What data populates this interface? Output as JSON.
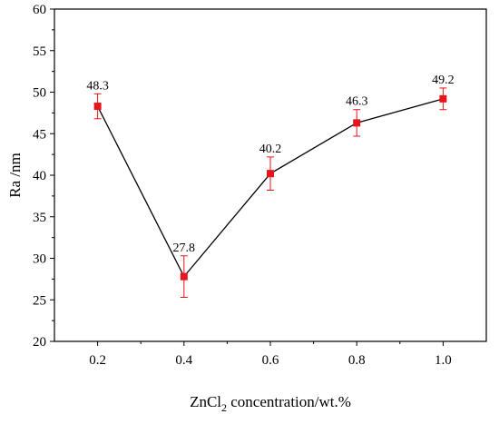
{
  "chart_data": {
    "type": "line",
    "title": "",
    "xlabel": {
      "prefix": "ZnCl",
      "subscript": "2",
      "suffix": " concentration/wt.%"
    },
    "ylabel": "Ra /nm",
    "xlim": [
      0.1,
      1.1
    ],
    "ylim": [
      20,
      60
    ],
    "x_ticks": [
      "0.2",
      "0.4",
      "0.6",
      "0.8",
      "1.0"
    ],
    "y_ticks": [
      "20",
      "25",
      "30",
      "35",
      "40",
      "45",
      "50",
      "55",
      "60"
    ],
    "series": [
      {
        "x": [
          0.2,
          0.4,
          0.6,
          0.8,
          1.0
        ],
        "y": [
          48.3,
          27.8,
          40.2,
          46.3,
          49.2
        ],
        "error": [
          1.5,
          2.5,
          2.0,
          1.6,
          1.3
        ],
        "data_labels": [
          "48.3",
          "27.8",
          "40.2",
          "46.3",
          "49.2"
        ]
      }
    ],
    "colors": {
      "line": "#000000",
      "marker": "#e8131b",
      "error_bar": "#e8131b"
    },
    "grid": false,
    "legend": "none"
  }
}
